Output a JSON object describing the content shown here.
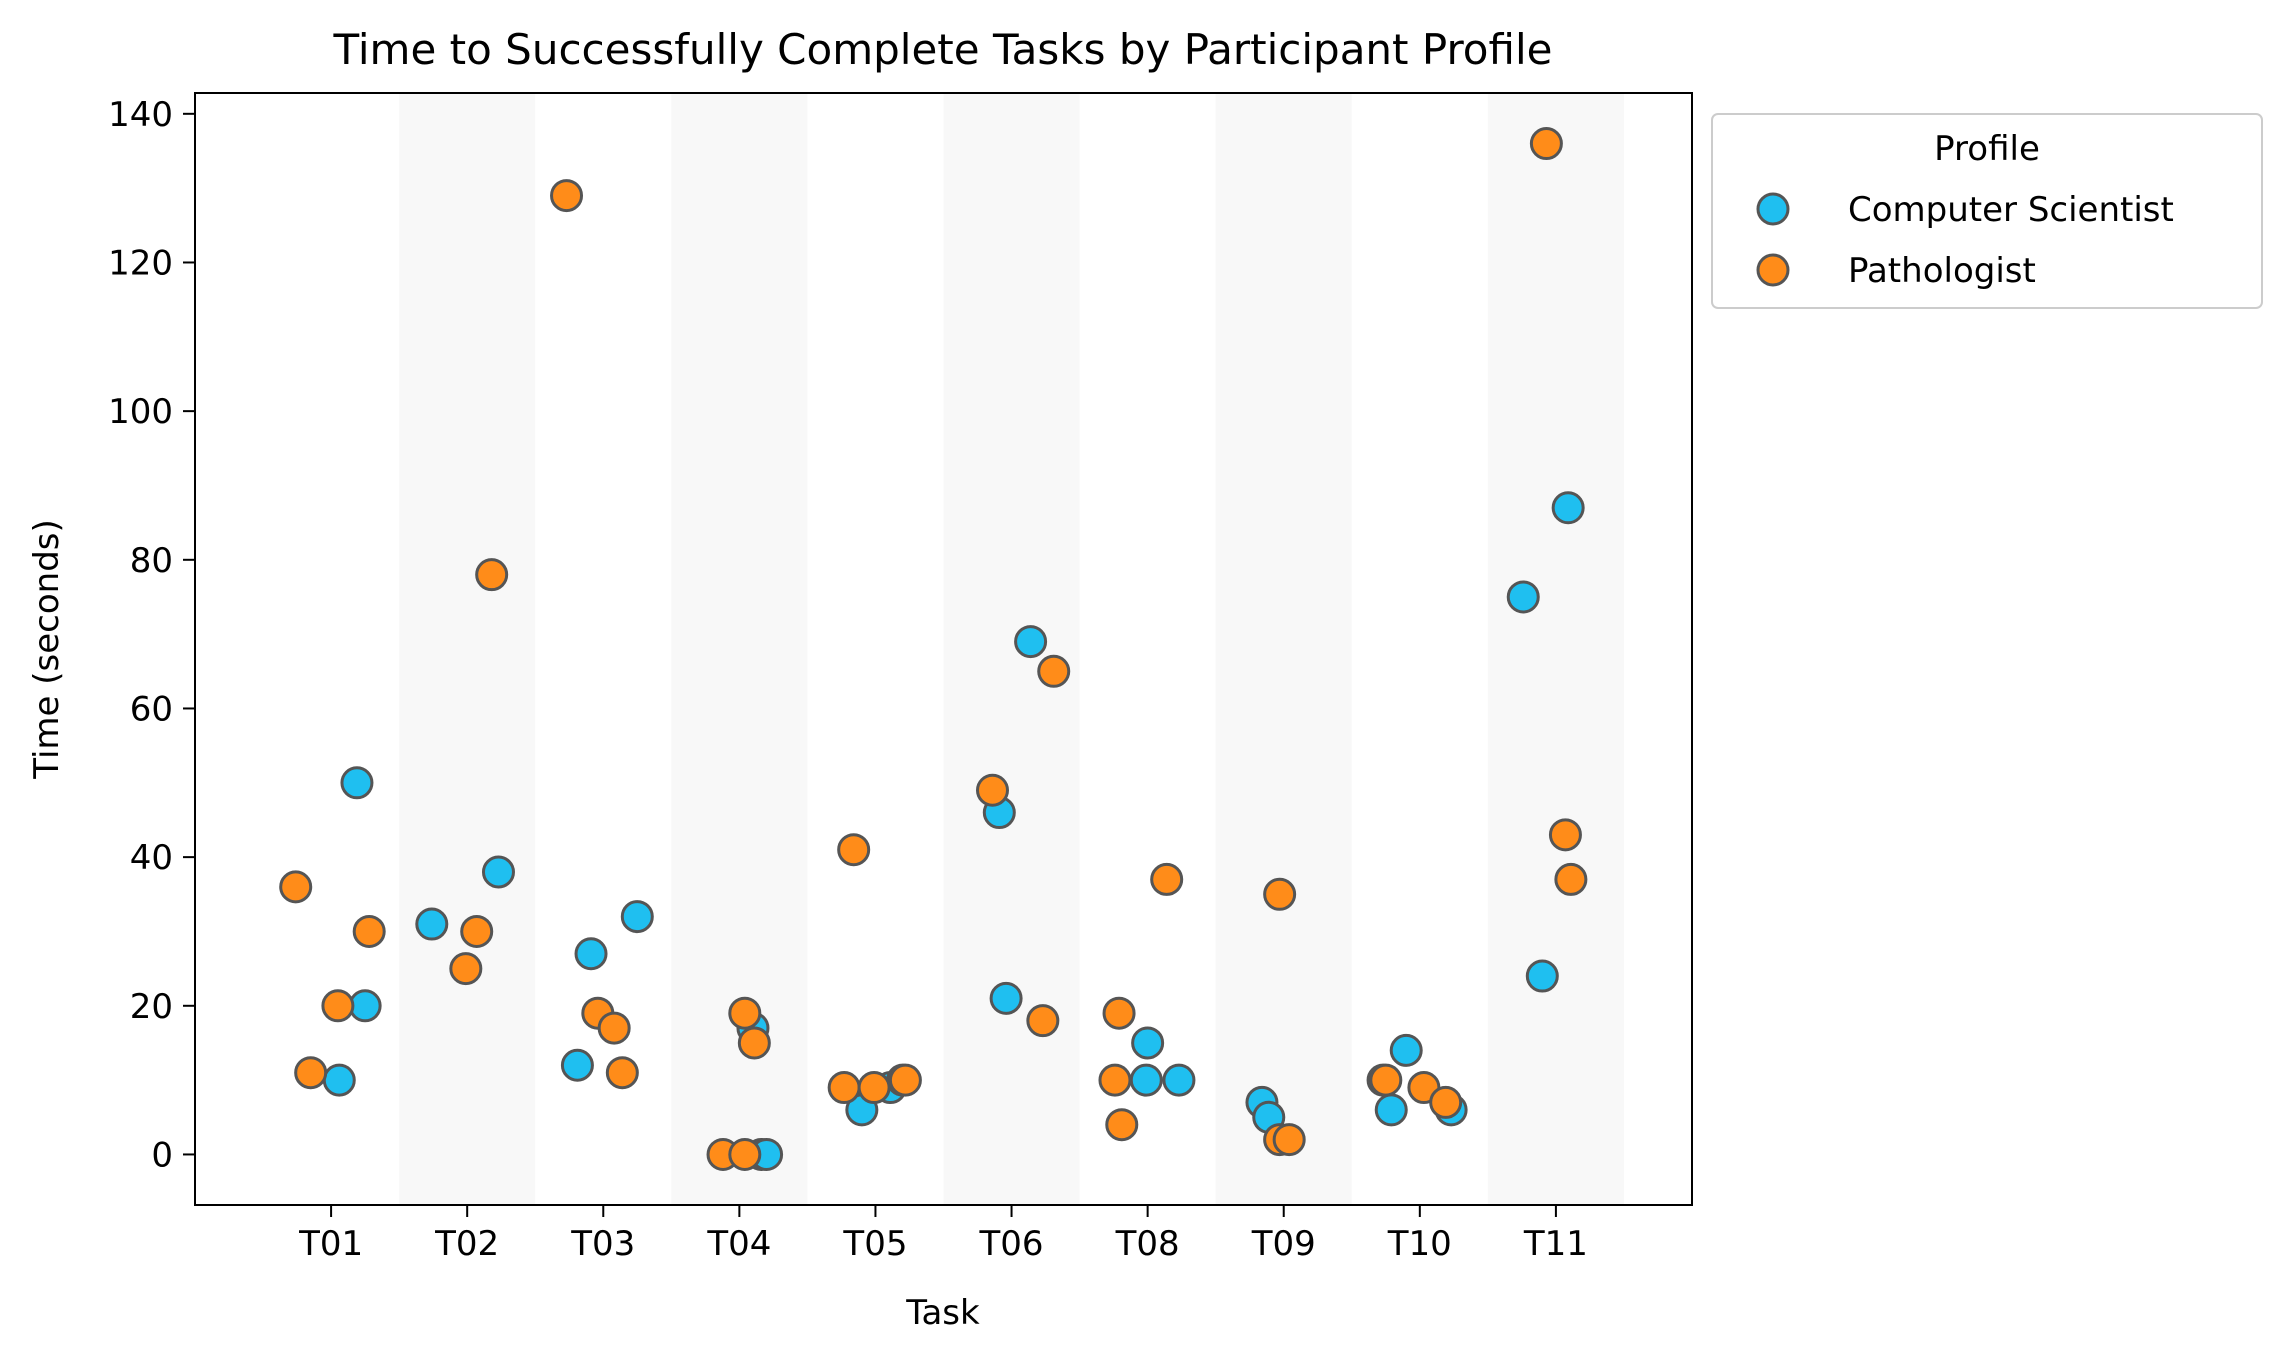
{
  "chart_data": {
    "type": "scatter",
    "title": "Time to Successfully Complete Tasks by Participant Profile",
    "xlabel": "Task",
    "ylabel": "Time (seconds)",
    "categories": [
      "T01",
      "T02",
      "T03",
      "T04",
      "T05",
      "T06",
      "T08",
      "T09",
      "T10",
      "T11"
    ],
    "xlim": [
      -1.0,
      10.0
    ],
    "ylim": [
      -6.8,
      142.8
    ],
    "yticks": [
      0,
      20,
      40,
      60,
      80,
      100,
      120,
      140
    ],
    "grid": false,
    "shaded_categories": [
      "T02",
      "T04",
      "T06",
      "T09",
      "T11"
    ],
    "colors": {
      "shade": "#f8f8f8",
      "marker_edge": "#555555"
    },
    "legend": {
      "title": "Profile",
      "placement": "outside right, upper"
    },
    "series": [
      {
        "name": "Computer Scientist",
        "color": "#1fbff0",
        "points": [
          {
            "x": 0.06,
            "y": 10
          },
          {
            "x": 0.19,
            "y": 50
          },
          {
            "x": 0.25,
            "y": 20
          },
          {
            "x": 1.23,
            "y": 38
          },
          {
            "x": 0.74,
            "y": 31
          },
          {
            "x": 1.81,
            "y": 12
          },
          {
            "x": 1.91,
            "y": 27
          },
          {
            "x": 2.25,
            "y": 32
          },
          {
            "x": 3.1,
            "y": 17
          },
          {
            "x": 3.16,
            "y": 0
          },
          {
            "x": 3.2,
            "y": 0
          },
          {
            "x": 3.9,
            "y": 6
          },
          {
            "x": 4.11,
            "y": 9
          },
          {
            "x": 4.2,
            "y": 10
          },
          {
            "x": 4.91,
            "y": 46
          },
          {
            "x": 4.96,
            "y": 21
          },
          {
            "x": 5.14,
            "y": 69
          },
          {
            "x": 5.99,
            "y": 10
          },
          {
            "x": 6.0,
            "y": 15
          },
          {
            "x": 6.23,
            "y": 10
          },
          {
            "x": 6.84,
            "y": 7
          },
          {
            "x": 6.89,
            "y": 5
          },
          {
            "x": 7.73,
            "y": 10
          },
          {
            "x": 7.79,
            "y": 6
          },
          {
            "x": 7.9,
            "y": 14
          },
          {
            "x": 8.23,
            "y": 6
          },
          {
            "x": 8.76,
            "y": 75
          },
          {
            "x": 8.9,
            "y": 24
          },
          {
            "x": 9.09,
            "y": 87
          }
        ]
      },
      {
        "name": "Pathologist",
        "color": "#ff8c19",
        "points": [
          {
            "x": -0.26,
            "y": 36
          },
          {
            "x": -0.15,
            "y": 11
          },
          {
            "x": 0.05,
            "y": 20
          },
          {
            "x": 0.28,
            "y": 30
          },
          {
            "x": 0.99,
            "y": 25
          },
          {
            "x": 1.07,
            "y": 30
          },
          {
            "x": 1.18,
            "y": 78
          },
          {
            "x": 1.73,
            "y": 129
          },
          {
            "x": 1.96,
            "y": 19
          },
          {
            "x": 2.08,
            "y": 17
          },
          {
            "x": 2.14,
            "y": 11
          },
          {
            "x": 2.88,
            "y": 0
          },
          {
            "x": 3.04,
            "y": 19
          },
          {
            "x": 3.04,
            "y": 0
          },
          {
            "x": 3.11,
            "y": 15
          },
          {
            "x": 3.77,
            "y": 9
          },
          {
            "x": 3.84,
            "y": 41
          },
          {
            "x": 3.99,
            "y": 9
          },
          {
            "x": 4.22,
            "y": 10
          },
          {
            "x": 4.86,
            "y": 49
          },
          {
            "x": 5.23,
            "y": 18
          },
          {
            "x": 5.31,
            "y": 65
          },
          {
            "x": 5.76,
            "y": 10
          },
          {
            "x": 5.79,
            "y": 19
          },
          {
            "x": 5.81,
            "y": 4
          },
          {
            "x": 6.14,
            "y": 37
          },
          {
            "x": 6.97,
            "y": 35
          },
          {
            "x": 6.97,
            "y": 2
          },
          {
            "x": 7.04,
            "y": 2
          },
          {
            "x": 7.75,
            "y": 10
          },
          {
            "x": 8.03,
            "y": 9
          },
          {
            "x": 8.19,
            "y": 7
          },
          {
            "x": 8.93,
            "y": 136
          },
          {
            "x": 9.07,
            "y": 43
          },
          {
            "x": 9.11,
            "y": 37
          }
        ]
      }
    ]
  }
}
